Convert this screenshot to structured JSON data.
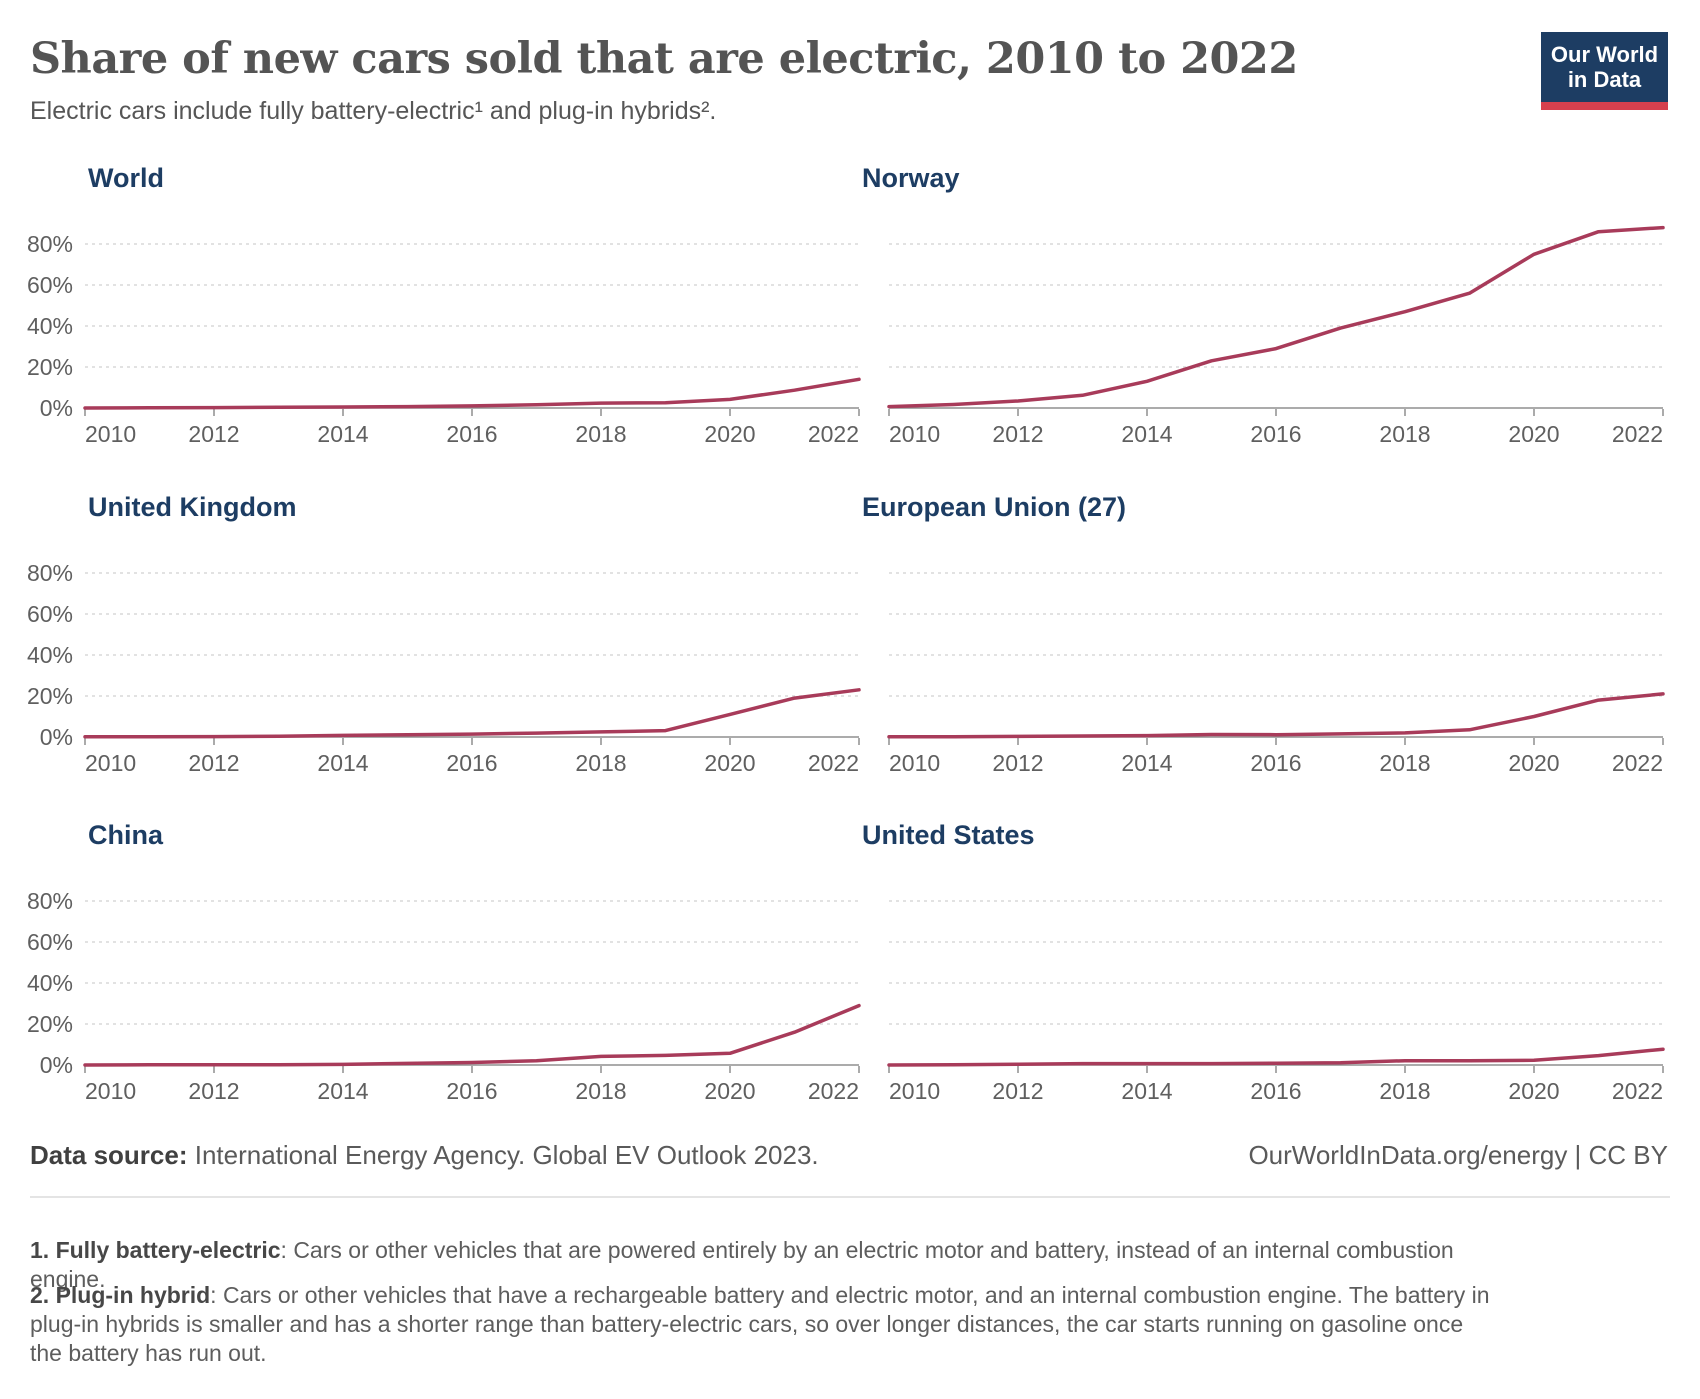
{
  "header": {
    "title": "Share of new cars sold that are electric, 2010 to 2022",
    "subtitle": "Electric cars include fully battery-electric¹ and plug-in hybrids².",
    "logo_line1": "Our World",
    "logo_line2": "in Data"
  },
  "colors": {
    "line": "#a83b5a",
    "facet_title": "#1d3d63",
    "grid": "#d9d9d9",
    "axis": "#8f8f8f",
    "tick_label": "#5f5f5f",
    "logo_navy": "#1d3d63",
    "logo_red": "#d6404e"
  },
  "chart_data": {
    "type": "line",
    "title": "Share of new cars sold that are electric, 2010 to 2022",
    "x": [
      2010,
      2011,
      2012,
      2013,
      2014,
      2015,
      2016,
      2017,
      2018,
      2019,
      2020,
      2021,
      2022
    ],
    "x_tick_labels": [
      "2010",
      "2012",
      "2014",
      "2016",
      "2018",
      "2020",
      "2022"
    ],
    "y_tick_labels": [
      "0%",
      "20%",
      "40%",
      "60%",
      "80%"
    ],
    "y_ticks": [
      0,
      20,
      40,
      60,
      80
    ],
    "ylim": [
      0,
      97
    ],
    "grid": true,
    "legend": "none",
    "unit": "%",
    "series": [
      {
        "name": "World",
        "values": [
          0.01,
          0.1,
          0.2,
          0.4,
          0.5,
          0.7,
          1.0,
          1.6,
          2.4,
          2.6,
          4.2,
          8.7,
          14
        ]
      },
      {
        "name": "Norway",
        "values": [
          0.7,
          1.7,
          3.4,
          6.2,
          13,
          23,
          29,
          39,
          47,
          56,
          75,
          86,
          88
        ]
      },
      {
        "name": "United Kingdom",
        "values": [
          0.1,
          0.1,
          0.2,
          0.4,
          0.8,
          1.1,
          1.4,
          1.9,
          2.5,
          3.1,
          11,
          19,
          23
        ]
      },
      {
        "name": "European Union (27)",
        "values": [
          0.1,
          0.1,
          0.3,
          0.5,
          0.7,
          1.2,
          1.1,
          1.5,
          2.0,
          3.5,
          10,
          18,
          21
        ]
      },
      {
        "name": "China",
        "values": [
          0.0,
          0.1,
          0.1,
          0.1,
          0.3,
          0.8,
          1.2,
          2.1,
          4.2,
          4.7,
          5.7,
          16,
          29
        ]
      },
      {
        "name": "United States",
        "values": [
          0.0,
          0.1,
          0.4,
          0.7,
          0.7,
          0.7,
          0.9,
          1.1,
          2.1,
          2.1,
          2.3,
          4.6,
          7.7
        ]
      }
    ]
  },
  "footer": {
    "source_label": "Data source:",
    "source_text": " International Energy Agency. Global EV Outlook 2023.",
    "link": "OurWorldInData.org/energy | CC BY"
  },
  "footnotes": [
    {
      "lead": "1. Fully battery-electric",
      "text": ": Cars or other vehicles that are powered entirely by an electric motor and battery, instead of an internal combustion engine."
    },
    {
      "lead": "2. Plug-in hybrid",
      "text": ": Cars or other vehicles that have a rechargeable battery and electric motor, and an internal combustion engine. The battery in plug-in hybrids is smaller and has a shorter range than battery-electric cars, so over longer distances, the car starts running on gasoline once the battery has run out."
    }
  ]
}
